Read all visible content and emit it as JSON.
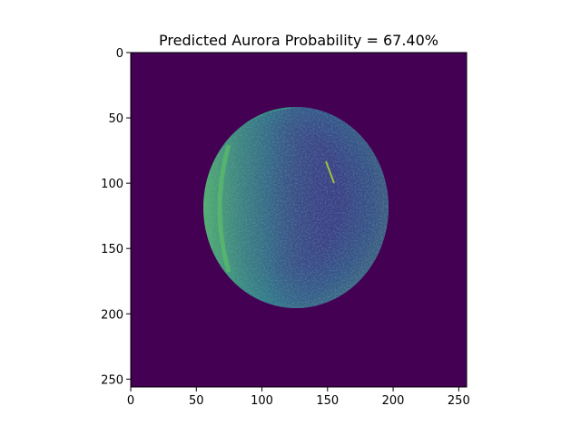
{
  "title": "Predicted Aurora Probability = 67.40%",
  "image": {
    "kind": "all-sky aurora image (viridis colormap)",
    "size": [
      256,
      256
    ],
    "colormap_background": "#440154",
    "colormap_low": "#3b2f7f",
    "colormap_mid": "#2c728e",
    "colormap_high": "#5ec962"
  },
  "chart_data": {
    "type": "heatmap",
    "title": "Predicted Aurora Probability = 67.40%",
    "xlabel": "",
    "ylabel": "",
    "xlim": [
      0,
      256
    ],
    "ylim": [
      256,
      0
    ],
    "x_ticks": [
      "0",
      "50",
      "100",
      "150",
      "200",
      "250"
    ],
    "y_ticks": [
      "0",
      "50",
      "100",
      "150",
      "200",
      "250"
    ],
    "x_tick_values": [
      0,
      50,
      100,
      150,
      200,
      250
    ],
    "y_tick_values": [
      0,
      50,
      100,
      150,
      200,
      250
    ],
    "grid": false,
    "legend": "none"
  }
}
